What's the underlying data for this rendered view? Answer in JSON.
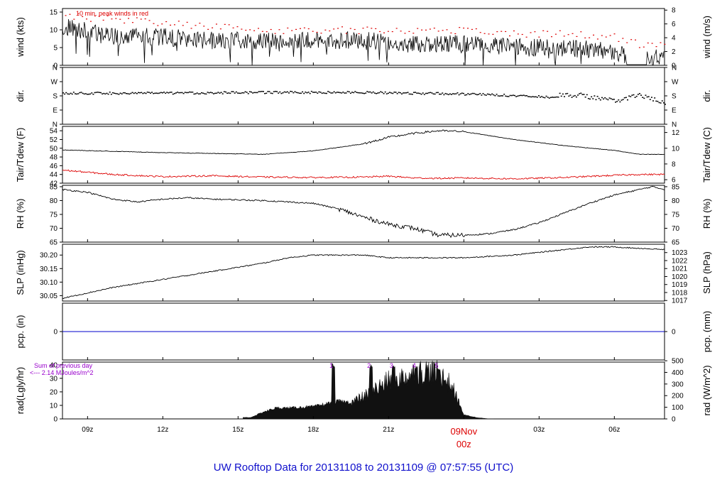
{
  "title": "UW Rooftop Data for 20131108  to  20131109 @ 07:57:55  (UTC)",
  "colors": {
    "frame": "#000000",
    "accent_red": "#dd0000",
    "precip_line": "#0000cc",
    "annotation_purple": "#9900cc",
    "title_blue": "#1010cc",
    "date_red": "#dd0000"
  },
  "time_axis": {
    "ticks": [
      {
        "hour": 9,
        "label": "09z"
      },
      {
        "hour": 12,
        "label": "12z"
      },
      {
        "hour": 15,
        "label": "15z"
      },
      {
        "hour": 18,
        "label": "18z"
      },
      {
        "hour": 21,
        "label": "21z"
      },
      {
        "hour": 24,
        "label": "00z"
      },
      {
        "hour": 27,
        "label": "03z"
      },
      {
        "hour": 30,
        "label": "06z"
      }
    ],
    "date_label": "09Nov",
    "date_hour_label": "00z",
    "range_hours": [
      8.0,
      32.0
    ]
  },
  "panels": {
    "wind": {
      "left_label": "wind (kts)",
      "right_label": "wind (m/s)",
      "left_ticks": [
        "0",
        "5",
        "10",
        "15"
      ],
      "right_ticks": [
        "0",
        "2",
        "4",
        "6",
        "8"
      ],
      "note": "10 min. peak winds in red"
    },
    "dir": {
      "left_label": "dir.",
      "right_label": "dir.",
      "ticks": [
        "N",
        "E",
        "S",
        "W",
        "N"
      ]
    },
    "temp": {
      "left_label": "Tair/Tdew (F)",
      "right_label": "Tair/Tdew (C)",
      "left_ticks": [
        "42",
        "44",
        "46",
        "48",
        "50",
        "52",
        "54"
      ],
      "right_ticks": [
        "6",
        "8",
        "10",
        "12"
      ]
    },
    "rh": {
      "left_label": "RH (%)",
      "right_label": "RH (%)",
      "left_ticks": [
        "65",
        "70",
        "75",
        "80",
        "85"
      ],
      "right_ticks": [
        "65",
        "70",
        "75",
        "80",
        "85"
      ]
    },
    "slp": {
      "left_label": "SLP (inHg)",
      "right_label": "SLP (hPa)",
      "left_ticks": [
        "30.05",
        "30.10",
        "30.15",
        "30.20"
      ],
      "right_ticks": [
        "1017",
        "1018",
        "1019",
        "1020",
        "1021",
        "1022",
        "1023"
      ]
    },
    "pcp": {
      "left_label": "pcp. (in)",
      "right_label": "pcp. (mm)",
      "left_ticks": [
        "0"
      ],
      "right_ticks": [
        "0"
      ]
    },
    "rad": {
      "left_label": "rad(Lgly/hr)",
      "right_label": "rad (W/m^2)",
      "left_ticks": [
        "0",
        "10",
        "20",
        "30",
        "40"
      ],
      "right_ticks": [
        "0",
        "100",
        "200",
        "300",
        "400",
        "500"
      ],
      "note_line1": "Sum of previous day",
      "note_line2": "<--- 2.14 MJoules/m^2",
      "markers": [
        "1",
        "2",
        "3",
        "4",
        "5"
      ]
    }
  },
  "chart_data": [
    {
      "type": "line",
      "name": "wind",
      "x": [
        8.0,
        10.0,
        12.0,
        14.0,
        16.0,
        18.0,
        20.0,
        22.0,
        24.0,
        26.0,
        28.0,
        30.0,
        31.0,
        32.0
      ],
      "series": [
        {
          "name": "wind speed (kts)",
          "values": [
            11,
            8,
            8,
            7,
            7,
            7,
            7,
            6,
            6,
            5,
            5,
            4,
            1,
            3
          ]
        },
        {
          "name": "10 min. peak winds",
          "values": [
            14,
            13,
            12,
            11,
            10,
            10,
            10,
            10,
            10,
            9,
            9,
            8,
            6,
            6
          ]
        }
      ],
      "ylim": [
        0,
        16
      ]
    },
    {
      "type": "scatter",
      "name": "dir",
      "x": [
        8.0,
        12.0,
        16.0,
        20.0,
        24.0,
        27.0,
        28.5,
        30.0,
        31.0,
        32.0
      ],
      "values": [
        200,
        200,
        205,
        205,
        195,
        180,
        190,
        150,
        190,
        130
      ],
      "ylim": [
        0,
        360
      ]
    },
    {
      "type": "line",
      "name": "temp",
      "x": [
        8.0,
        10.0,
        12.0,
        14.0,
        16.0,
        18.0,
        20.0,
        21.0,
        22.0,
        23.0,
        24.0,
        26.0,
        28.0,
        30.0,
        31.0,
        32.0
      ],
      "series": [
        {
          "name": "Tair (F)",
          "values": [
            49.6,
            49.3,
            49.0,
            48.8,
            48.6,
            49.4,
            51.0,
            52.5,
            53.4,
            54.0,
            53.8,
            52.0,
            50.6,
            49.5,
            48.6,
            48.6
          ]
        },
        {
          "name": "Tdew (F)",
          "values": [
            45.0,
            44.0,
            43.5,
            43.7,
            43.4,
            43.3,
            43.4,
            43.6,
            43.2,
            43.1,
            43.2,
            43.0,
            43.3,
            43.8,
            44.0,
            44.0
          ]
        }
      ],
      "ylim": [
        42,
        55
      ]
    },
    {
      "type": "line",
      "name": "rh",
      "x": [
        8.0,
        9.0,
        10.0,
        11.0,
        12.0,
        13.0,
        14.0,
        16.0,
        18.0,
        19.0,
        20.0,
        21.0,
        22.0,
        23.0,
        24.0,
        25.0,
        26.0,
        27.0,
        28.0,
        29.0,
        30.0,
        31.0,
        31.5,
        32.0
      ],
      "values": [
        84.0,
        83.0,
        80.5,
        79.5,
        80.5,
        81.0,
        80.5,
        80.0,
        79.0,
        77.0,
        74.0,
        71.5,
        70.0,
        67.5,
        67.5,
        68.0,
        69.5,
        72.0,
        75.5,
        79.0,
        82.0,
        84.0,
        85.0,
        84.0
      ],
      "ylim": [
        65,
        85.5
      ]
    },
    {
      "type": "line",
      "name": "slp",
      "x": [
        8.0,
        9.0,
        10.0,
        12.0,
        14.0,
        16.0,
        17.0,
        18.0,
        20.0,
        21.0,
        22.0,
        24.0,
        26.0,
        27.0,
        28.0,
        29.0,
        30.0,
        32.0
      ],
      "values": [
        30.04,
        30.06,
        30.08,
        30.11,
        30.14,
        30.17,
        30.19,
        30.2,
        30.2,
        30.19,
        30.19,
        30.19,
        30.2,
        30.21,
        30.22,
        30.23,
        30.23,
        30.22
      ],
      "ylim": [
        30.03,
        30.24
      ]
    },
    {
      "type": "line",
      "name": "pcp",
      "x": [
        8.0,
        32.0
      ],
      "values": [
        0,
        0
      ],
      "ylim": [
        -1,
        1
      ]
    },
    {
      "type": "area",
      "name": "rad",
      "x": [
        15.5,
        16.0,
        16.5,
        17.0,
        18.0,
        18.5,
        19.0,
        19.5,
        20.0,
        20.5,
        21.0,
        21.5,
        22.0,
        22.5,
        23.0,
        23.5,
        24.0,
        24.5,
        25.0
      ],
      "values": [
        1,
        5,
        8,
        8,
        9,
        11,
        13,
        12,
        16,
        22,
        28,
        30,
        33,
        35,
        33,
        25,
        3,
        1,
        0
      ],
      "peaks": [
        {
          "x": 18.8,
          "value": 41
        },
        {
          "x": 20.3,
          "value": 40
        },
        {
          "x": 21.2,
          "value": 41
        },
        {
          "x": 22.1,
          "value": 39
        },
        {
          "x": 23.0,
          "value": 38
        }
      ],
      "ylim": [
        0,
        42
      ]
    }
  ]
}
